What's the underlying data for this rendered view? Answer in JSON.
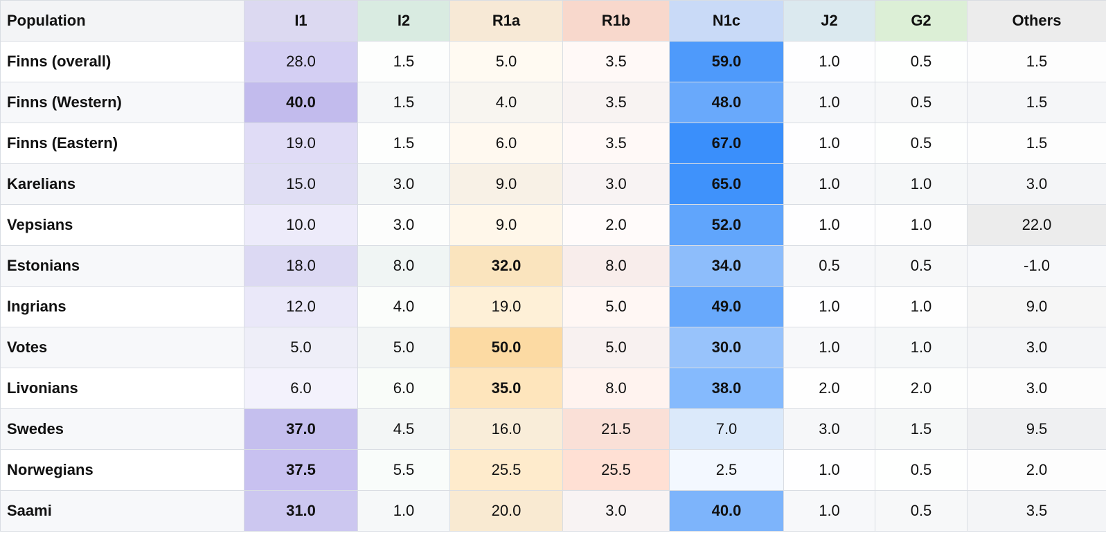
{
  "chart_data": {
    "type": "table",
    "columns": [
      "Population",
      "I1",
      "I2",
      "R1a",
      "R1b",
      "N1c",
      "J2",
      "G2",
      "Others"
    ],
    "header_colors": [
      "#f3f4f6",
      "#dcd9f1",
      "#d9ebe1",
      "#f7e9d6",
      "#f8d8cc",
      "#c9daf7",
      "#dbe9ef",
      "#dcefd6",
      "#ececec"
    ],
    "column_colors": {
      "I1": "#a59ae6",
      "I2": "#cfe7d4",
      "R1a": "#fdd28a",
      "R1b": "#ffb89d",
      "N1c": "#3a8ffb",
      "J2": "#e6eaf0",
      "G2": "#d7ecd0",
      "Others": "#cfcfcf"
    },
    "bold_threshold": 30,
    "rows": [
      {
        "population": "Finns (overall)",
        "values": [
          "28.0",
          "1.5",
          "5.0",
          "3.5",
          "59.0",
          "1.0",
          "0.5",
          "1.5"
        ]
      },
      {
        "population": "Finns (Western)",
        "values": [
          "40.0",
          "1.5",
          "4.0",
          "3.5",
          "48.0",
          "1.0",
          "0.5",
          "1.5"
        ]
      },
      {
        "population": "Finns (Eastern)",
        "values": [
          "19.0",
          "1.5",
          "6.0",
          "3.5",
          "67.0",
          "1.0",
          "0.5",
          "1.5"
        ]
      },
      {
        "population": "Karelians",
        "values": [
          "15.0",
          "3.0",
          "9.0",
          "3.0",
          "65.0",
          "1.0",
          "1.0",
          "3.0"
        ]
      },
      {
        "population": "Vepsians",
        "values": [
          "10.0",
          "3.0",
          "9.0",
          "2.0",
          "52.0",
          "1.0",
          "1.0",
          "22.0"
        ]
      },
      {
        "population": "Estonians",
        "values": [
          "18.0",
          "8.0",
          "32.0",
          "8.0",
          "34.0",
          "0.5",
          "0.5",
          "-1.0"
        ]
      },
      {
        "population": "Ingrians",
        "values": [
          "12.0",
          "4.0",
          "19.0",
          "5.0",
          "49.0",
          "1.0",
          "1.0",
          "9.0"
        ]
      },
      {
        "population": "Votes",
        "values": [
          "5.0",
          "5.0",
          "50.0",
          "5.0",
          "30.0",
          "1.0",
          "1.0",
          "3.0"
        ]
      },
      {
        "population": "Livonians",
        "values": [
          "6.0",
          "6.0",
          "35.0",
          "8.0",
          "38.0",
          "2.0",
          "2.0",
          "3.0"
        ]
      },
      {
        "population": "Swedes",
        "values": [
          "37.0",
          "4.5",
          "16.0",
          "21.5",
          "7.0",
          "3.0",
          "1.5",
          "9.5"
        ]
      },
      {
        "population": "Norwegians",
        "values": [
          "37.5",
          "5.5",
          "25.5",
          "25.5",
          "2.5",
          "1.0",
          "0.5",
          "2.0"
        ]
      },
      {
        "population": "Saami",
        "values": [
          "31.0",
          "1.0",
          "20.0",
          "3.0",
          "40.0",
          "1.0",
          "0.5",
          "3.5"
        ]
      }
    ]
  }
}
